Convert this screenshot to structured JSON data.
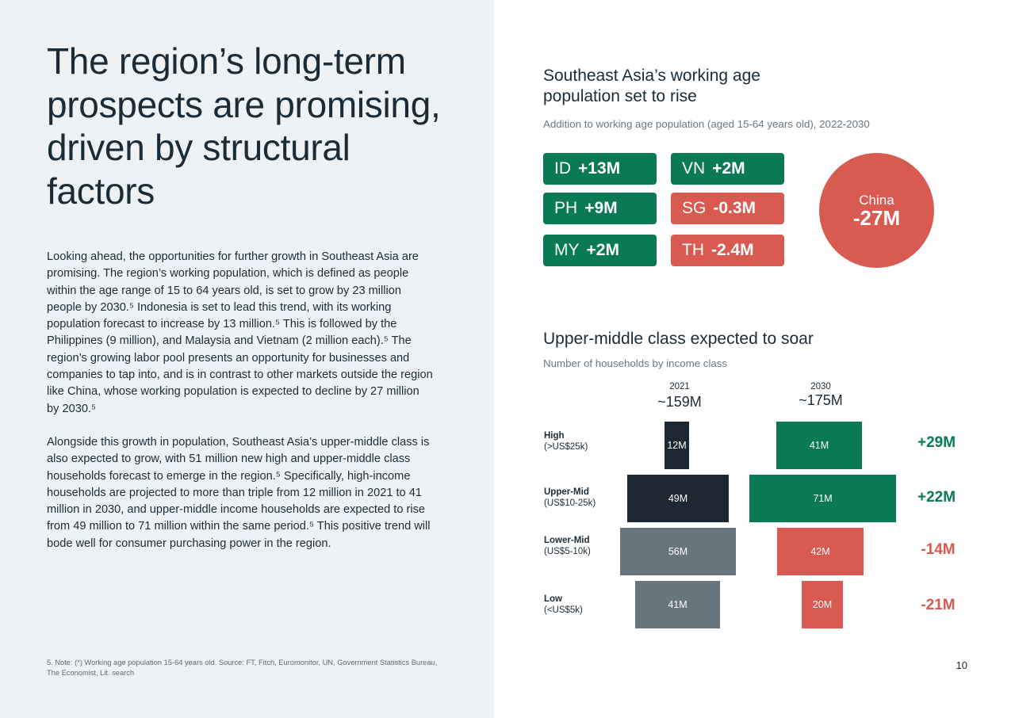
{
  "left": {
    "title": "The region’s long-term prospects are promising, driven by structural factors",
    "paragraph_1": "Looking ahead, the opportunities for further growth in Southeast Asia are promising. The region’s working population, which is defined as people within the age range of 15 to 64 years old, is set to grow by 23 million people by 2030.⁵ Indonesia is set to lead this trend, with its working population forecast to increase by 13 million.⁵ This is followed by the Philippines (9 million), and Malaysia and Vietnam (2 million each).⁵ The region’s growing labor pool presents an opportunity for businesses and companies to tap into, and is in contrast to other markets outside the region like China, whose working population is expected to decline by 27 million by 2030.⁵",
    "paragraph_2": "Alongside this growth in population, Southeast Asia’s upper-middle class is also expected to grow, with 51 million new high and upper-middle class households forecast to emerge in the region.⁵ Specifically, high-income households are projected to more than triple from 12 million in 2021 to 41 million in 2030, and upper-middle income households are expected to rise from 49 million to 71 million within the same period.⁵ This positive trend will bode well for consumer purchasing power in the region.",
    "footnote": "5. Note: (*) Working age population 15-64 years old. Source: FT, Fitch, Euromonitor, UN, Government Statistics Bureau, The Economist, Lit. search"
  },
  "population": {
    "title": "Southeast Asia’s working age population set to rise",
    "subtitle": "Addition to working age population (aged 15-64 years old), 2022-2030",
    "cards": [
      {
        "code": "ID",
        "value": "+13M"
      },
      {
        "code": "VN",
        "value": "+2M"
      },
      {
        "code": "PH",
        "value": "+9M"
      },
      {
        "code": "SG",
        "value": "-0.3M"
      },
      {
        "code": "MY",
        "value": "+2M"
      },
      {
        "code": "TH",
        "value": "-2.4M"
      }
    ],
    "china": {
      "label": "China",
      "value": "-27M"
    },
    "colors": {
      "positive": "#0a7a56",
      "negative": "#d95a51"
    }
  },
  "income_class": {
    "title": "Upper-middle class expected to soar",
    "subtitle": "Number of households by income class",
    "years": [
      {
        "year": "2021",
        "total": "~159M"
      },
      {
        "year": "2030",
        "total": "~175M"
      }
    ],
    "rows": [
      {
        "name": "High",
        "range": "(>US$25k)",
        "v2021": "12M",
        "v2030": "41M",
        "delta": "+29M"
      },
      {
        "name": "Upper-Mid",
        "range": "(US$10-25k)",
        "v2021": "49M",
        "v2030": "71M",
        "delta": "+22M"
      },
      {
        "name": "Lower-Mid",
        "range": "(US$5-10k)",
        "v2021": "56M",
        "v2030": "42M",
        "delta": "-14M"
      },
      {
        "name": "Low",
        "range": "(<US$5k)",
        "v2021": "41M",
        "v2030": "20M",
        "delta": "-21M"
      }
    ],
    "colors": {
      "dark": "#1c2731",
      "grey": "#67757d",
      "green": "#0a7a56",
      "red": "#d95a51"
    }
  },
  "page_number": "10"
}
